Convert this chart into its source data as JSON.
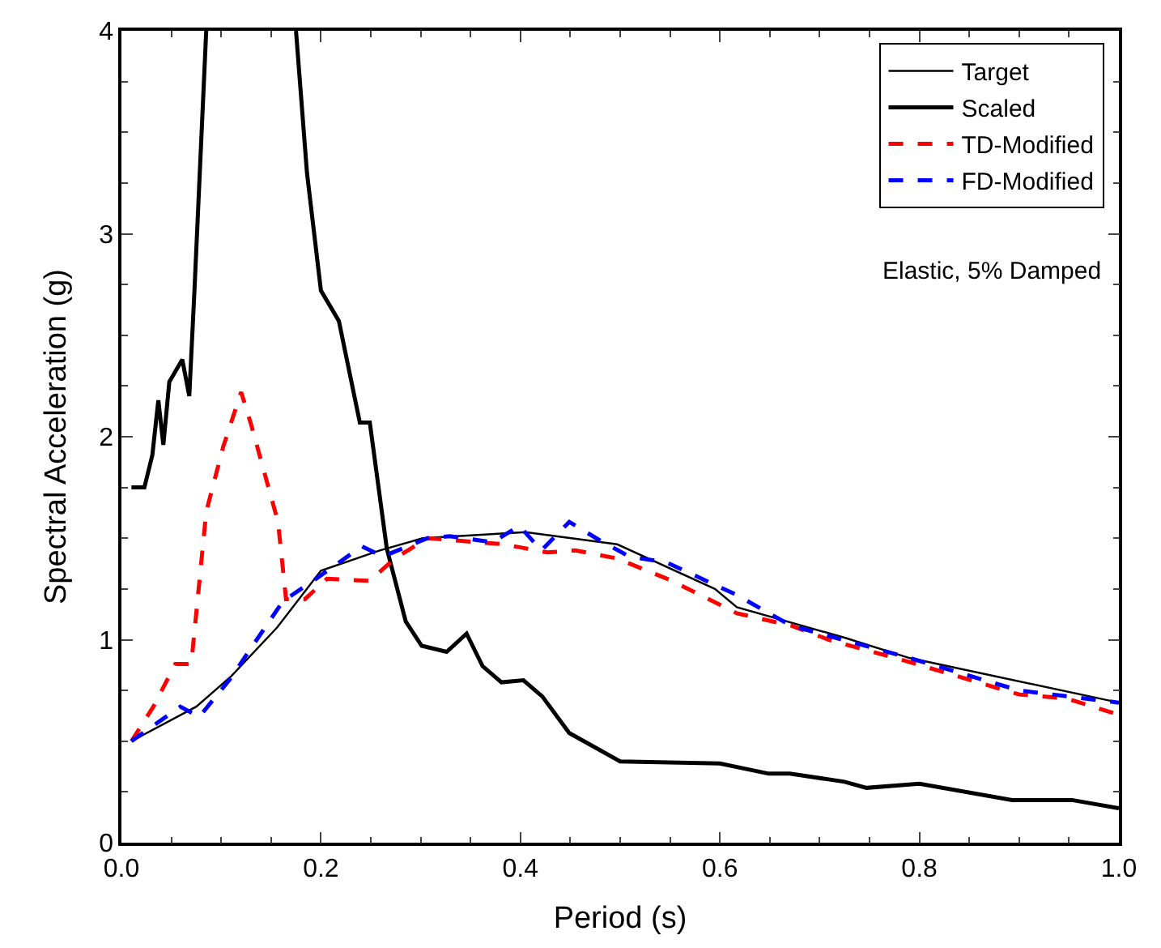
{
  "chart_data": {
    "type": "line",
    "xlabel": "Period (s)",
    "ylabel": "Spectral Acceleration (g)",
    "xlim": [
      0,
      1
    ],
    "xticks": [
      {
        "value": 0,
        "label": "0.0"
      },
      0.2,
      0.4,
      0.6,
      0.8,
      {
        "value": 1,
        "label": "1.0"
      }
    ],
    "ylim": [
      0,
      4
    ],
    "yticks": [
      0,
      1,
      2,
      3,
      4
    ],
    "legend": "top right",
    "line_style": "solid",
    "annotations": [
      "Elastic, 5% Damped"
    ],
    "series": [
      {
        "name": "Target",
        "color": "#000000",
        "x": [
          0.01,
          0.075,
          0.11,
          0.156,
          0.2,
          0.259,
          0.302,
          0.405,
          0.497,
          0.595,
          0.617,
          0.725,
          0.79,
          1.0
        ],
        "values": [
          0.5,
          0.67,
          0.82,
          1.06,
          1.34,
          1.44,
          1.5,
          1.53,
          1.47,
          1.25,
          1.16,
          1.01,
          0.91,
          0.69
        ]
      },
      {
        "name": "Scaled",
        "color": "#000000",
        "x": [
          0.01,
          0.023,
          0.031,
          0.037,
          0.042,
          0.048,
          0.061,
          0.068,
          0.073,
          0.085,
          0.13,
          0.175,
          0.186,
          0.2,
          0.218,
          0.239,
          0.249,
          0.266,
          0.285,
          0.301,
          0.326,
          0.346,
          0.362,
          0.381,
          0.403,
          0.422,
          0.449,
          0.46,
          0.5,
          0.6,
          0.649,
          0.67,
          0.725,
          0.747,
          0.8,
          0.893,
          0.953,
          1.0
        ],
        "values": [
          1.75,
          1.75,
          1.91,
          2.18,
          1.96,
          2.27,
          2.38,
          2.2,
          2.7,
          4.0,
          null,
          4.0,
          3.3,
          2.72,
          2.57,
          2.07,
          2.07,
          1.45,
          1.09,
          0.97,
          0.94,
          1.03,
          0.87,
          0.79,
          0.8,
          0.72,
          0.54,
          0.51,
          0.4,
          0.39,
          0.34,
          0.34,
          0.3,
          0.27,
          0.29,
          0.21,
          0.21,
          0.17
        ]
      },
      {
        "name": "TD-Modified",
        "color": "#ff0000",
        "line_style": "dashed",
        "x": [
          0.01,
          0.032,
          0.054,
          0.07,
          0.085,
          0.102,
          0.12,
          0.13,
          0.157,
          0.165,
          0.184,
          0.206,
          0.249,
          0.274,
          0.307,
          0.383,
          0.427,
          0.455,
          0.497,
          0.552,
          0.617,
          0.671,
          0.709,
          0.79,
          0.9,
          0.948,
          1.0
        ],
        "values": [
          0.5,
          0.67,
          0.88,
          0.88,
          1.63,
          1.95,
          2.22,
          2.06,
          1.58,
          1.2,
          1.2,
          1.3,
          1.29,
          1.4,
          1.5,
          1.47,
          1.43,
          1.44,
          1.4,
          1.29,
          1.13,
          1.07,
          1.0,
          0.89,
          0.73,
          0.71,
          0.63
        ]
      },
      {
        "name": "FD-Modified",
        "color": "#0000ff",
        "line_style": "dashed",
        "x": [
          0.01,
          0.059,
          0.078,
          0.108,
          0.162,
          0.195,
          0.241,
          0.262,
          0.307,
          0.329,
          0.372,
          0.399,
          0.421,
          0.449,
          0.476,
          0.509,
          0.547,
          0.617,
          0.671,
          0.79,
          0.9,
          1.0
        ],
        "values": [
          0.5,
          0.67,
          0.62,
          0.8,
          1.19,
          1.3,
          1.46,
          1.41,
          1.5,
          1.51,
          1.48,
          1.56,
          1.44,
          1.58,
          1.5,
          1.41,
          1.38,
          1.22,
          1.07,
          0.91,
          0.75,
          0.69
        ]
      }
    ]
  }
}
